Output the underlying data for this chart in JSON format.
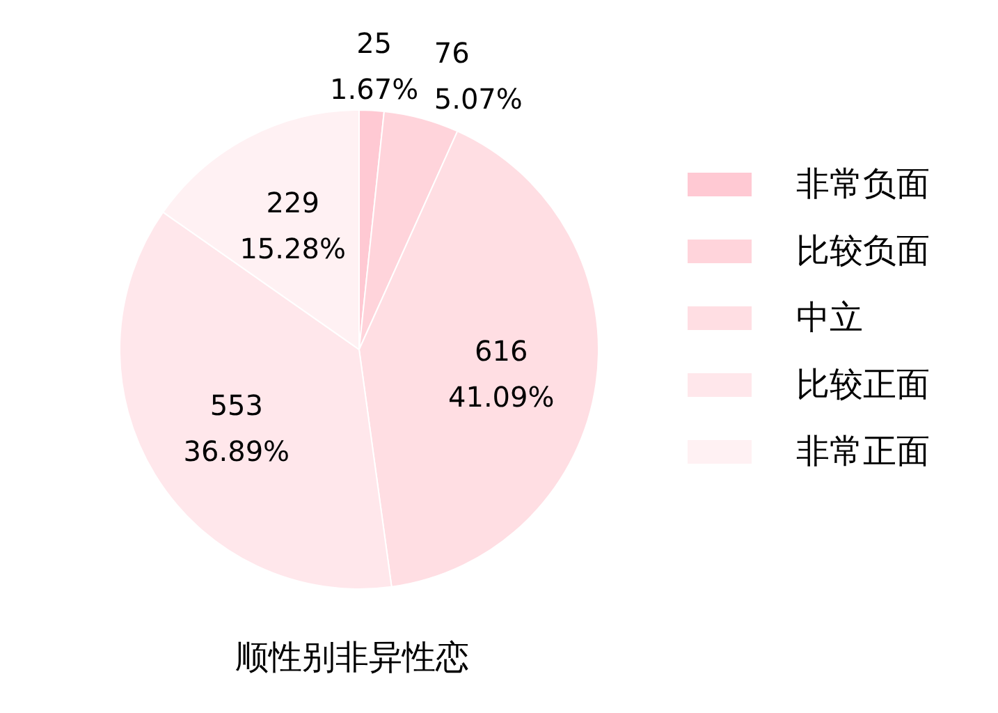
{
  "chart_data": {
    "type": "pie",
    "title": "顺性别非异性恋",
    "categories": [
      "非常负面",
      "比较负面",
      "中立",
      "比较正面",
      "非常正面"
    ],
    "values": [
      25,
      76,
      616,
      553,
      229
    ],
    "value_labels": [
      "25\n1.67%",
      "76\n5.07%",
      "616\n41.09%",
      "553\n36.89%",
      "229\n15.28%"
    ],
    "colors": [
      "#ffc9d3",
      "#ffd4db",
      "#ffdee3",
      "#ffe7eb",
      "#fff1f3"
    ],
    "legend": "right"
  }
}
